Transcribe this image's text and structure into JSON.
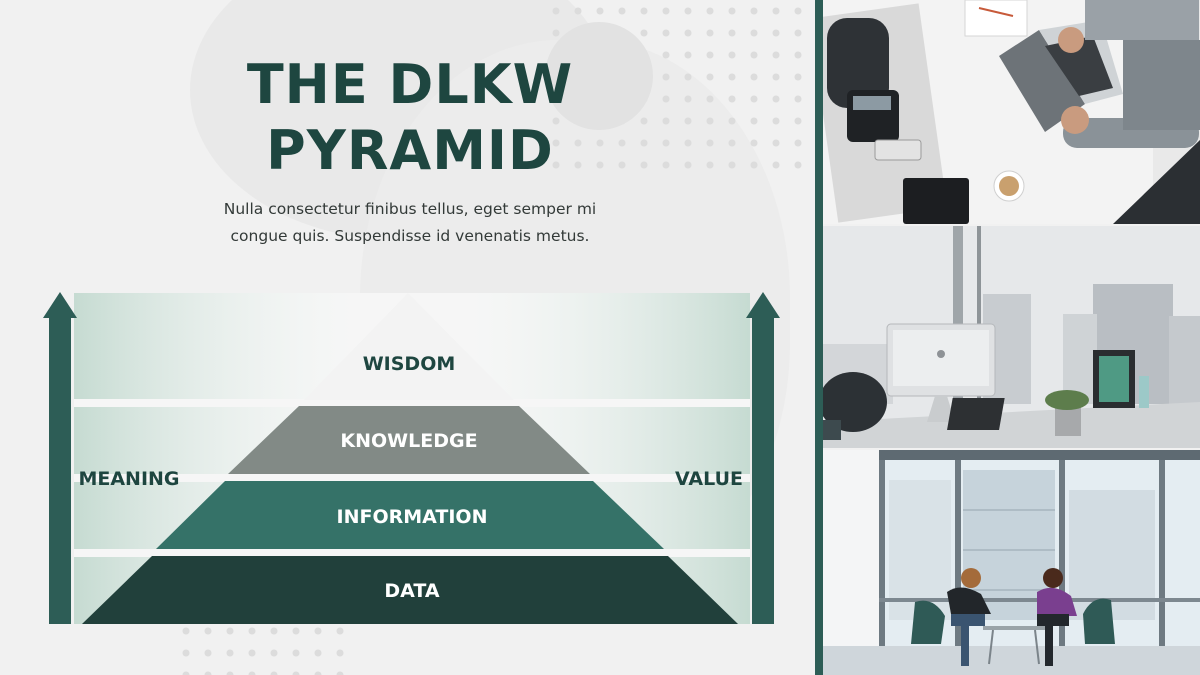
{
  "slide": {
    "title_line1": "THE DLKW",
    "title_line2": "PYRAMID",
    "subtitle_line1": "Nulla consectetur finibus tellus, eget semper mi",
    "subtitle_line2": "congue quis. Suspendisse id venenatis metus."
  },
  "diagram": {
    "left_axis_label": "MEANING",
    "right_axis_label": "VALUE",
    "levels": [
      {
        "label": "WISDOM",
        "color": "#f3f3f3",
        "text_color": "#1e4640"
      },
      {
        "label": "KNOWLEDGE",
        "color": "#828a86",
        "text_color": "#ffffff"
      },
      {
        "label": "INFORMATION",
        "color": "#357268",
        "text_color": "#ffffff"
      },
      {
        "label": "DATA",
        "color": "#21403b",
        "text_color": "#ffffff"
      }
    ],
    "arrow_color": "#2d5d56",
    "band_tint": "#bdd6cb"
  },
  "photos": [
    {
      "subject": "overhead-desk-laptop-photo"
    },
    {
      "subject": "office-desk-city-view-photo"
    },
    {
      "subject": "two-people-meeting-window-photo"
    }
  ]
}
